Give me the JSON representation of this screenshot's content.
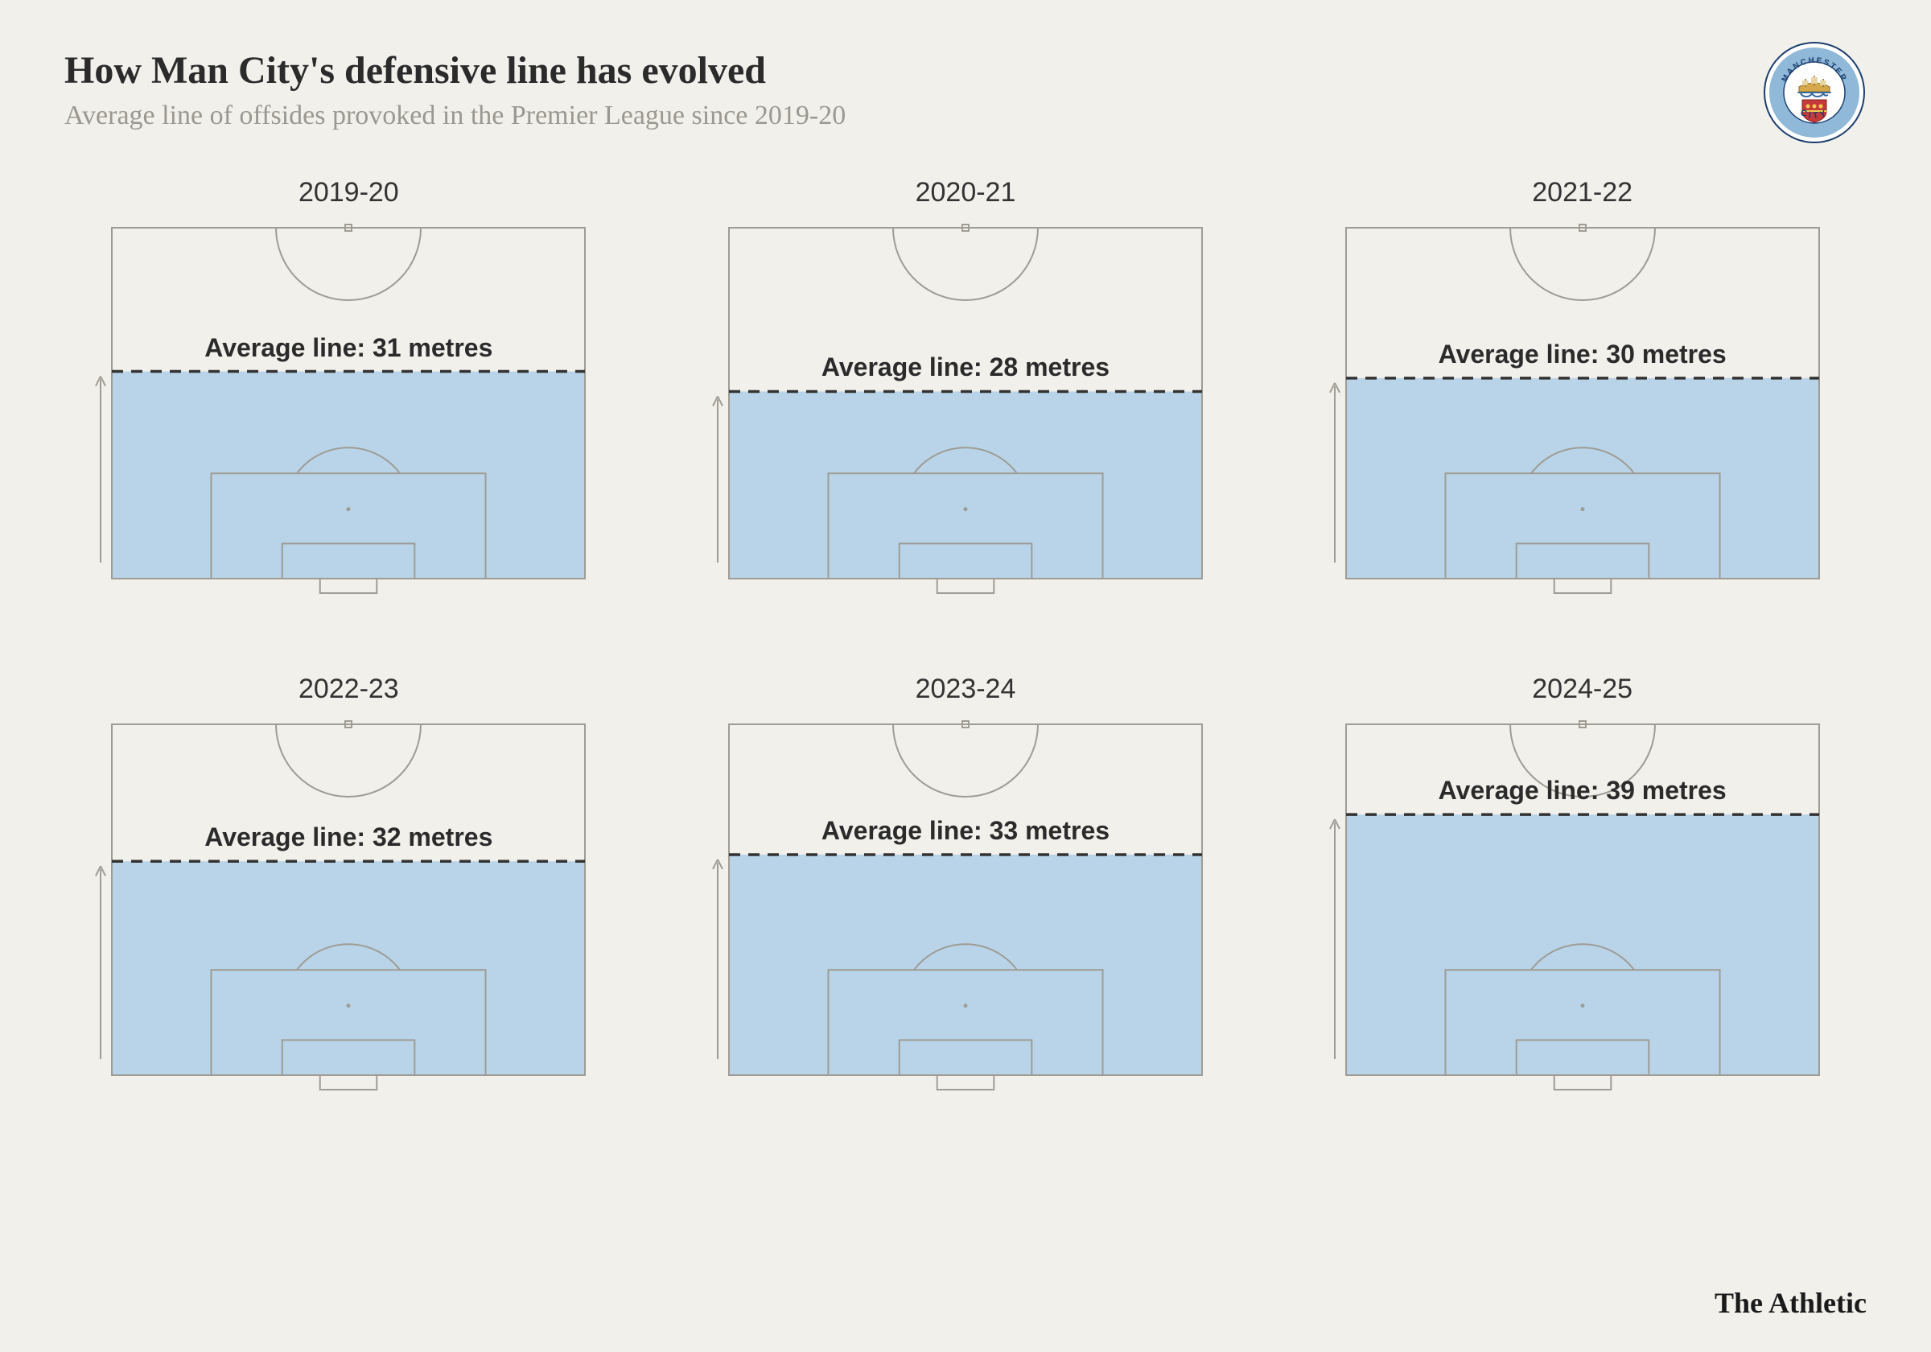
{
  "title": "How Man City's defensive line has evolved",
  "subtitle": "Average line of offsides provoked in the Premier League since 2019-20",
  "title_fontsize": 48,
  "subtitle_fontsize": 34,
  "background_color": "#f2f0ea",
  "fill_color": "#b9d4e8",
  "pitch_line_color": "#9e9c94",
  "dash_color": "#333333",
  "text_color": "#2b2b2b",
  "pitch_half_metres": 52.5,
  "panels": [
    {
      "season": "2019-20",
      "metres": 31,
      "label": "Average line: 31 metres"
    },
    {
      "season": "2020-21",
      "metres": 28,
      "label": "Average line: 28 metres"
    },
    {
      "season": "2021-22",
      "metres": 30,
      "label": "Average line: 30 metres"
    },
    {
      "season": "2022-23",
      "metres": 32,
      "label": "Average line: 32 metres"
    },
    {
      "season": "2023-24",
      "metres": 33,
      "label": "Average line: 33 metres"
    },
    {
      "season": "2024-25",
      "metres": 39,
      "label": "Average line: 39 metres"
    }
  ],
  "source": "The Athletic",
  "badge": {
    "outer_ring": "#ffffff",
    "ring_band": "#8fb8d9",
    "inner": "#ffffff",
    "ship_body": "#d4a84b",
    "shield": "#c53a3a",
    "text": "MANCHESTER"
  }
}
